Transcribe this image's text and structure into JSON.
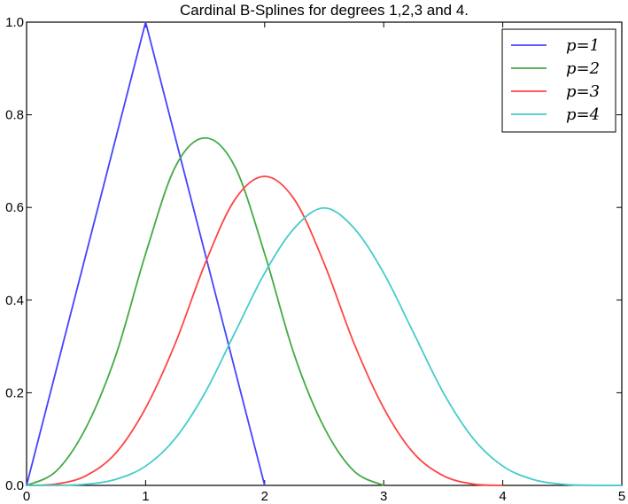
{
  "chart_data": {
    "type": "line",
    "title": "Cardinal B-Splines for degrees 1,2,3 and 4.",
    "xlabel": "",
    "ylabel": "",
    "xlim": [
      0,
      5
    ],
    "ylim": [
      0,
      1.0
    ],
    "x_ticks": [
      "0",
      "1",
      "2",
      "3",
      "4",
      "5"
    ],
    "y_ticks": [
      "0.0",
      "0.2",
      "0.4",
      "0.6",
      "0.8",
      "1.0"
    ],
    "grid": false,
    "legend": "top-right",
    "series": [
      {
        "name": "p=1",
        "color": "#4444ff",
        "x": [
          0,
          0.25,
          0.5,
          0.75,
          1,
          1.25,
          1.5,
          1.75,
          2
        ],
        "y": [
          0,
          0.25,
          0.5,
          0.75,
          1.0,
          0.75,
          0.5,
          0.25,
          0
        ]
      },
      {
        "name": "p=2",
        "color": "#44aa44",
        "x": [
          0,
          0.25,
          0.5,
          0.75,
          1,
          1.25,
          1.5,
          1.75,
          2,
          2.25,
          2.5,
          2.75,
          3
        ],
        "y": [
          0,
          0.031,
          0.125,
          0.281,
          0.5,
          0.688,
          0.75,
          0.688,
          0.5,
          0.281,
          0.125,
          0.031,
          0
        ]
      },
      {
        "name": "p=3",
        "color": "#ff4444",
        "x": [
          0,
          0.25,
          0.5,
          0.75,
          1,
          1.25,
          1.5,
          1.75,
          2,
          2.25,
          2.5,
          2.75,
          3,
          3.25,
          3.5,
          3.75,
          4
        ],
        "y": [
          0,
          0.003,
          0.021,
          0.07,
          0.167,
          0.307,
          0.479,
          0.617,
          0.667,
          0.617,
          0.479,
          0.307,
          0.167,
          0.07,
          0.021,
          0.003,
          0
        ]
      },
      {
        "name": "p=4",
        "color": "#44cccc",
        "x": [
          0,
          0.25,
          0.5,
          0.75,
          1,
          1.25,
          1.5,
          1.75,
          2,
          2.25,
          2.5,
          2.75,
          3,
          3.25,
          3.5,
          3.75,
          4,
          4.25,
          4.5,
          4.75,
          5
        ],
        "y": [
          0,
          0.0002,
          0.0026,
          0.0132,
          0.0417,
          0.1017,
          0.2005,
          0.3297,
          0.4583,
          0.5555,
          0.599,
          0.5555,
          0.4583,
          0.3297,
          0.2005,
          0.1017,
          0.0417,
          0.0132,
          0.0026,
          0.0002,
          0
        ]
      }
    ]
  }
}
